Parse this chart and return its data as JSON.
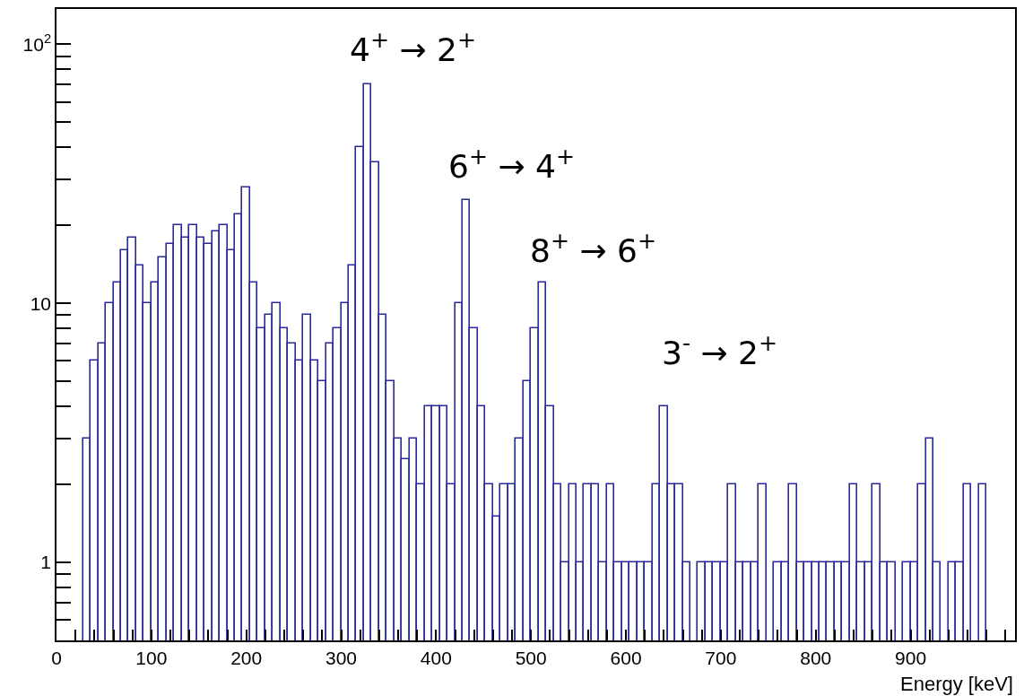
{
  "chart_data": {
    "type": "histogram",
    "xlabel": "Energy [keV]",
    "bins": [
      28,
      36,
      44,
      52,
      60,
      68,
      76,
      84,
      92,
      100,
      108,
      116,
      124,
      132,
      140,
      148,
      156,
      164,
      172,
      180,
      188,
      196,
      204,
      212,
      220,
      228,
      236,
      244,
      252,
      260,
      268,
      276,
      284,
      292,
      300,
      308,
      316,
      324,
      332,
      340,
      348,
      356,
      364,
      372,
      380,
      388,
      396,
      404,
      412,
      420,
      428,
      436,
      444,
      452,
      460,
      468,
      476,
      484,
      492,
      500,
      508,
      516,
      524,
      532,
      540,
      548,
      556,
      564,
      572,
      580,
      588,
      596,
      604,
      612,
      620,
      628,
      636,
      644,
      652,
      660,
      668,
      676,
      684,
      692,
      700,
      708,
      716,
      724,
      732,
      740,
      748,
      756,
      764,
      772,
      780,
      788,
      796,
      804,
      812,
      820,
      828,
      836,
      844,
      852,
      860,
      868,
      876,
      884,
      892,
      900,
      908,
      916,
      924,
      932,
      940,
      948,
      956,
      964,
      972,
      980,
      988
    ],
    "values": [
      3,
      6,
      7,
      10,
      12,
      16,
      18,
      14,
      10,
      12,
      15,
      17,
      20,
      18,
      20,
      18,
      17,
      19,
      20,
      16,
      22,
      28,
      12,
      8,
      9,
      10,
      8,
      7,
      6,
      9,
      6,
      5,
      7,
      8,
      10,
      14,
      40,
      70,
      35,
      9,
      5,
      3,
      2.5,
      3,
      2,
      4,
      4,
      4,
      2,
      10,
      25,
      8,
      4,
      2,
      1.5,
      2,
      2,
      3,
      5,
      8,
      12,
      4,
      2,
      1,
      2,
      1,
      2,
      2,
      1,
      2,
      1,
      1,
      1,
      1,
      1,
      2,
      4,
      2,
      2,
      1,
      null,
      1,
      1,
      1,
      1,
      2,
      1,
      1,
      1,
      2,
      null,
      1,
      1,
      2,
      1,
      1,
      1,
      1,
      1,
      1,
      1,
      2,
      1,
      1,
      2,
      1,
      1,
      null,
      1,
      1,
      2,
      3,
      1,
      null,
      1,
      1,
      2,
      null,
      2,
      null
    ],
    "color": "#2a2aa0",
    "log": true,
    "xlim": [
      0,
      1010
    ],
    "ylim": [
      0.5,
      137
    ],
    "xticks": [
      0,
      {
        "value": 20,
        "label": null
      },
      {
        "value": 40,
        "label": null
      },
      {
        "value": 60,
        "label": null
      },
      {
        "value": 80,
        "label": null
      },
      100,
      {
        "value": 120,
        "label": null
      },
      {
        "value": 140,
        "label": null
      },
      {
        "value": 160,
        "label": null
      },
      {
        "value": 180,
        "label": null
      },
      200,
      {
        "value": 220,
        "label": null
      },
      {
        "value": 240,
        "label": null
      },
      {
        "value": 260,
        "label": null
      },
      {
        "value": 280,
        "label": null
      },
      300,
      {
        "value": 320,
        "label": null
      },
      {
        "value": 340,
        "label": null
      },
      {
        "value": 360,
        "label": null
      },
      {
        "value": 380,
        "label": null
      },
      400,
      {
        "value": 420,
        "label": null
      },
      {
        "value": 440,
        "label": null
      },
      {
        "value": 460,
        "label": null
      },
      {
        "value": 480,
        "label": null
      },
      500,
      {
        "value": 520,
        "label": null
      },
      {
        "value": 540,
        "label": null
      },
      {
        "value": 560,
        "label": null
      },
      {
        "value": 580,
        "label": null
      },
      600,
      {
        "value": 620,
        "label": null
      },
      {
        "value": 640,
        "label": null
      },
      {
        "value": 660,
        "label": null
      },
      {
        "value": 680,
        "label": null
      },
      700,
      {
        "value": 720,
        "label": null
      },
      {
        "value": 740,
        "label": null
      },
      {
        "value": 760,
        "label": null
      },
      {
        "value": 780,
        "label": null
      },
      800,
      {
        "value": 820,
        "label": null
      },
      {
        "value": 840,
        "label": null
      },
      {
        "value": 860,
        "label": null
      },
      {
        "value": 880,
        "label": null
      },
      900,
      {
        "value": 920,
        "label": null
      },
      {
        "value": 940,
        "label": null
      },
      {
        "value": 960,
        "label": null
      },
      {
        "value": 980,
        "label": null
      },
      {
        "value": 1000,
        "label": null
      }
    ],
    "yticks": [
      1,
      10,
      {
        "value": 100,
        "label": "10$^{2}$"
      }
    ],
    "annotations": [
      "4$^{+}$ → 2$^{+}$",
      "6$^{+}$ → 4$^{+}$",
      "8$^{+}$ → 6$^{+}$",
      "3$^{-}$ → 2$^{+}$"
    ]
  }
}
